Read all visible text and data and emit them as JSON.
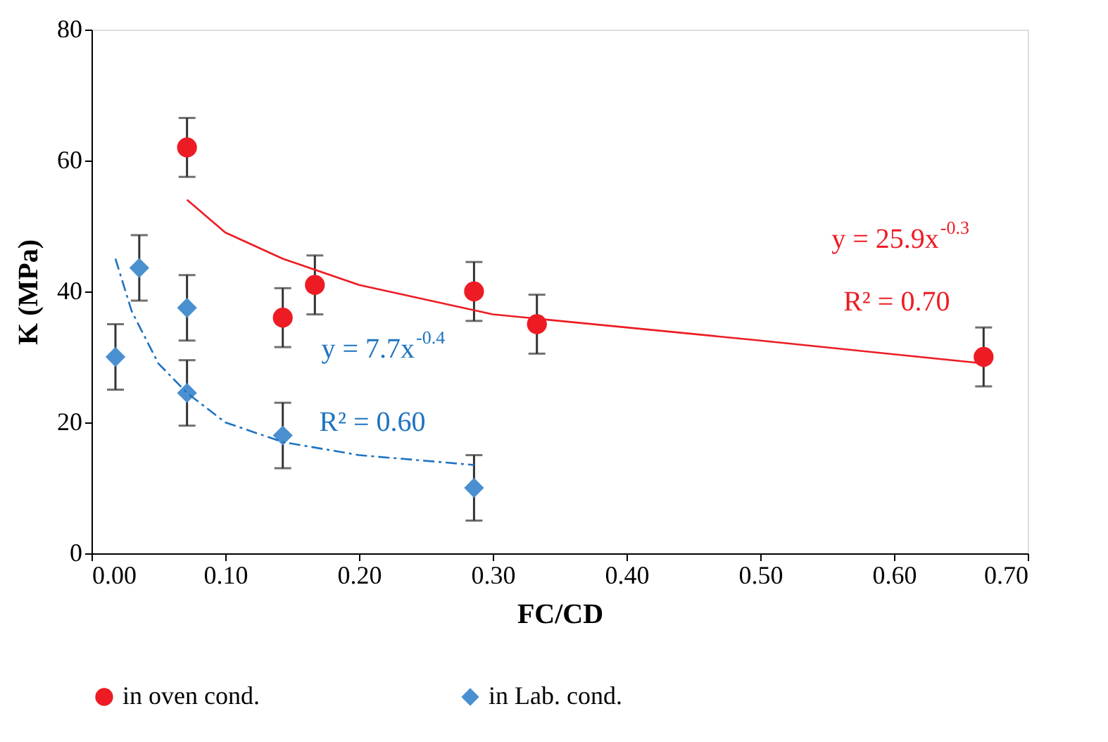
{
  "chart_data": {
    "type": "scatter",
    "xlabel": "FC/CD",
    "ylabel": "K (MPa)",
    "xlim": [
      0,
      0.7
    ],
    "xticks": [
      {
        "value": 0,
        "label": "0.00"
      },
      {
        "value": 0.1,
        "label": "0.10"
      },
      {
        "value": 0.2,
        "label": "0.20"
      },
      {
        "value": 0.3,
        "label": "0.30"
      },
      {
        "value": 0.4,
        "label": "0.40"
      },
      {
        "value": 0.5,
        "label": "0.50"
      },
      {
        "value": 0.6,
        "label": "0.60"
      },
      {
        "value": 0.7,
        "label": "0.70"
      }
    ],
    "ylim": [
      0,
      80
    ],
    "yticks": [
      0,
      20,
      40,
      60,
      80
    ],
    "grid": false,
    "legend": "bottom",
    "series": [
      {
        "name": "in oven cond.",
        "marker": "circle",
        "color": "#ed1c24",
        "x": [
          0.0714,
          0.143,
          0.167,
          0.286,
          0.333,
          0.667
        ],
        "values": [
          62,
          36,
          41,
          40,
          35,
          30
        ],
        "errors": [
          4.5,
          4.5,
          4.5,
          4.5,
          4.5,
          4.5
        ]
      },
      {
        "name": "in Lab. cond.",
        "marker": "diamond",
        "color": "#4a90d0",
        "x": [
          0.0179,
          0.0357,
          0.0714,
          0.0714,
          0.143,
          0.286
        ],
        "values": [
          30,
          43.6,
          37.5,
          24.5,
          18,
          10
        ],
        "errors": [
          5,
          5,
          5,
          5,
          5,
          5
        ]
      },
      {
        "type": "line",
        "line_style": "solid",
        "color": "#ed1c24",
        "x": [
          0.0714,
          0.1,
          0.143,
          0.2,
          0.3,
          0.4,
          0.5,
          0.667
        ],
        "values": [
          54,
          49,
          45,
          41,
          36.5,
          34.5,
          32.5,
          29
        ]
      },
      {
        "type": "line",
        "line_style": "dashed",
        "color": "#1f73c0",
        "x": [
          0.0179,
          0.03,
          0.05,
          0.0714,
          0.1,
          0.143,
          0.2,
          0.286
        ],
        "values": [
          45,
          37,
          29,
          24.5,
          20,
          17,
          15,
          13.5
        ]
      }
    ],
    "annotations": [
      "y = 25.9x$^{-0.3}$",
      "R² = 0.70",
      "y = 7.7x$^{-0.4}$",
      "R² = 0.60"
    ]
  }
}
